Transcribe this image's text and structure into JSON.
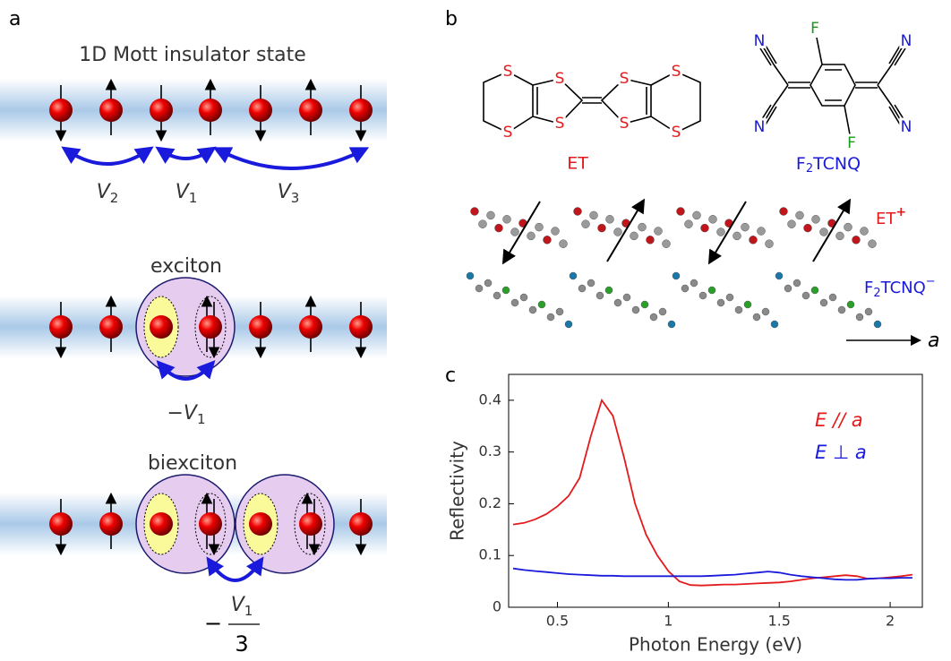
{
  "panel_labels": [
    "a",
    "b",
    "c"
  ],
  "panel_a": {
    "title": "1D Mott insulator state",
    "couplings": [
      {
        "symbol": "V",
        "subscript": "2"
      },
      {
        "symbol": "V",
        "subscript": "1"
      },
      {
        "symbol": "V",
        "subscript": "3"
      }
    ],
    "exciton": {
      "title": "exciton",
      "energy": {
        "sign": "−",
        "symbol": "V",
        "subscript": "1"
      }
    },
    "biexciton": {
      "title": "biexciton",
      "energy": {
        "sign": "−",
        "symbol": "V",
        "subscript": "1",
        "denominator": "3"
      }
    }
  },
  "panel_b": {
    "et": {
      "atoms": [
        "S",
        "S",
        "S",
        "S",
        "S",
        "S",
        "S",
        "S"
      ],
      "label": "ET"
    },
    "f2tcnq": {
      "nitrogens": [
        "N",
        "N",
        "N",
        "N"
      ],
      "fluorines": [
        "F",
        "F"
      ],
      "label": {
        "base": "F",
        "subscript": "2",
        "rest": "TCNQ"
      }
    },
    "crystal": {
      "cation": {
        "base": "ET",
        "charge": "+"
      },
      "anion": {
        "base": "F",
        "subscript": "2",
        "rest": "TCNQ",
        "charge": "−"
      },
      "axis": "a"
    }
  },
  "chart_data": {
    "type": "line",
    "x_label": "Photon Energy (eV)",
    "y_label": "Reflectivity",
    "x": [
      0.3,
      0.35,
      0.4,
      0.45,
      0.5,
      0.55,
      0.6,
      0.65,
      0.7,
      0.75,
      0.8,
      0.85,
      0.9,
      0.95,
      1,
      1.05,
      1.1,
      1.15,
      1.2,
      1.25,
      1.3,
      1.35,
      1.4,
      1.45,
      1.5,
      1.55,
      1.6,
      1.65,
      1.7,
      1.75,
      1.8,
      1.85,
      1.9,
      1.95,
      2,
      2.05,
      2.1
    ],
    "series": [
      {
        "name": "E // a",
        "color": "#e41a1c",
        "values": [
          0.16,
          0.163,
          0.17,
          0.18,
          0.195,
          0.215,
          0.25,
          0.33,
          0.4,
          0.37,
          0.29,
          0.2,
          0.14,
          0.1,
          0.07,
          0.05,
          0.043,
          0.042,
          0.043,
          0.044,
          0.044,
          0.045,
          0.046,
          0.047,
          0.048,
          0.05,
          0.053,
          0.056,
          0.058,
          0.06,
          0.062,
          0.06,
          0.055,
          0.056,
          0.058,
          0.06,
          0.063
        ]
      },
      {
        "name": "E ⊥ a",
        "color": "#1a1adc",
        "values": [
          0.075,
          0.072,
          0.07,
          0.068,
          0.066,
          0.064,
          0.063,
          0.062,
          0.061,
          0.061,
          0.06,
          0.06,
          0.06,
          0.06,
          0.06,
          0.06,
          0.06,
          0.06,
          0.061,
          0.062,
          0.063,
          0.065,
          0.067,
          0.069,
          0.067,
          0.063,
          0.06,
          0.058,
          0.056,
          0.054,
          0.053,
          0.053,
          0.055,
          0.056,
          0.056,
          0.057,
          0.057
        ]
      }
    ],
    "xlim": [
      0.28,
      2.145
    ],
    "ylim": [
      0,
      0.45
    ],
    "xticks": [
      0.5,
      1,
      1.5,
      2
    ],
    "yticks": [
      0,
      0.1,
      0.2,
      0.3,
      0.4
    ],
    "legend": "upper right"
  }
}
